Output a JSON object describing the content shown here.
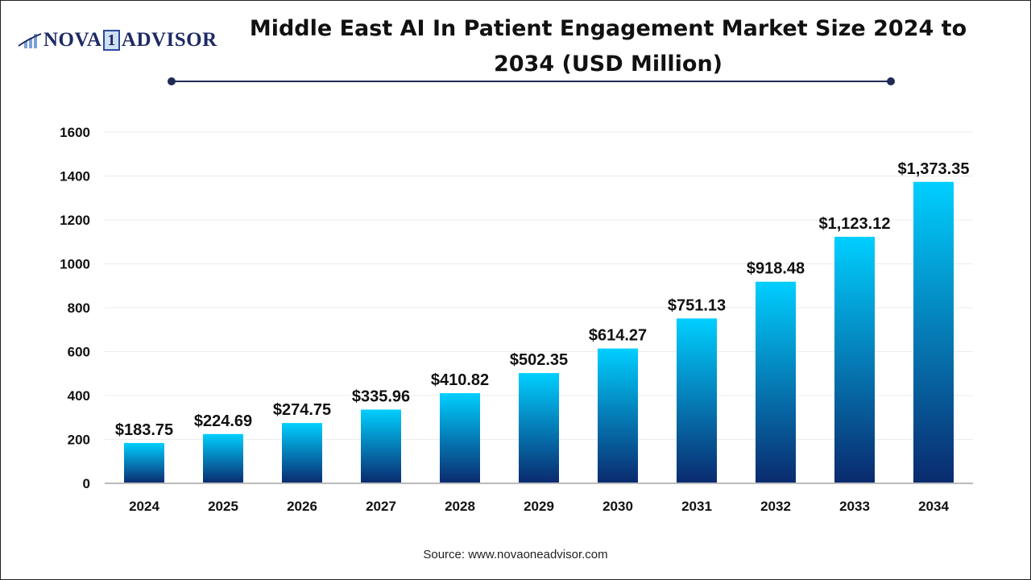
{
  "brand": {
    "logo_text_left": "NOVA",
    "logo_text_mid": "1",
    "logo_text_right": "ADVISOR"
  },
  "chart_data": {
    "type": "bar",
    "title": "Middle East AI In Patient Engagement Market Size 2024 to 2034 (USD Million)",
    "categories": [
      "2024",
      "2025",
      "2026",
      "2027",
      "2028",
      "2029",
      "2030",
      "2031",
      "2032",
      "2033",
      "2034"
    ],
    "values": [
      183.75,
      224.69,
      274.75,
      335.96,
      410.82,
      502.35,
      614.27,
      751.13,
      918.48,
      1123.12,
      1373.35
    ],
    "data_labels": [
      "$183.75",
      "$224.69",
      "$274.75",
      "$335.96",
      "$410.82",
      "$502.35",
      "$614.27",
      "$751.13",
      "$918.48",
      "$1,123.12",
      "$1,373.35"
    ],
    "ylim": [
      0,
      1600
    ],
    "yticks": [
      0,
      200,
      400,
      600,
      800,
      1000,
      1200,
      1400,
      1600
    ],
    "grid": true,
    "xlabel": "",
    "ylabel": "",
    "colors": {
      "bar_top": "#00cfff",
      "bar_bottom": "#0a2a6e",
      "title_rule": "#1f2a55"
    }
  },
  "source": "Source: www.novaoneadvisor.com"
}
